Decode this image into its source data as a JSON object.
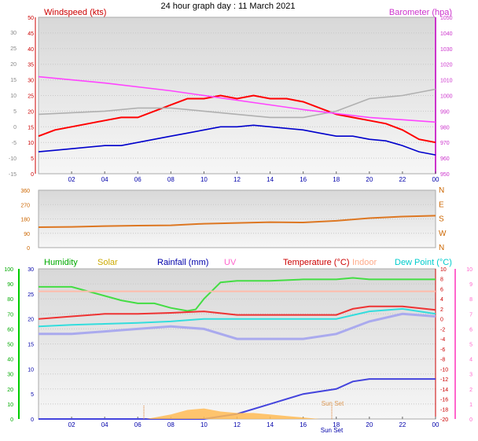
{
  "title": "24 hour graph day : 11 March 2021",
  "chart_data": [
    {
      "type": "line",
      "panel": "wind",
      "left_axis": {
        "label": "Windspeed (kts)",
        "color": "#cc0000",
        "ylim": [
          0,
          50
        ],
        "ticks": [
          "0",
          "5",
          "10",
          "15",
          "20",
          "25",
          "30",
          "35",
          "40",
          "45",
          "50"
        ]
      },
      "right_axis": {
        "label": "Barometer (hpa)",
        "color": "#cc33cc",
        "ylim": [
          950,
          1050
        ],
        "ticks": [
          "950",
          "960",
          "970",
          "980",
          "990",
          "1000",
          "1010",
          "1020",
          "1030",
          "1040",
          "1050"
        ]
      },
      "left_axis_side_ticks": [
        "-15",
        "-10",
        "-5",
        "0",
        "5",
        "10",
        "15",
        "20",
        "25",
        "30"
      ],
      "x_ticks": [
        "02",
        "04",
        "06",
        "08",
        "10",
        "12",
        "14",
        "16",
        "18",
        "20",
        "22",
        "00"
      ],
      "series": [
        {
          "role": "gust",
          "color": "#ff0000",
          "axis": "left",
          "hours": [
            0,
            1,
            2,
            3,
            4,
            5,
            6,
            7,
            8,
            9,
            10,
            11,
            12,
            13,
            14,
            15,
            16,
            17,
            18,
            19,
            20,
            21,
            22,
            23,
            24
          ],
          "values": [
            12,
            14,
            15,
            16,
            17,
            18,
            18,
            20,
            22,
            24,
            24,
            25,
            24,
            25,
            24,
            24,
            23,
            21,
            19,
            18,
            17,
            16,
            14,
            11,
            10
          ]
        },
        {
          "role": "average",
          "color": "#0000cc",
          "axis": "left",
          "hours": [
            0,
            1,
            2,
            3,
            4,
            5,
            6,
            7,
            8,
            9,
            10,
            11,
            12,
            13,
            14,
            15,
            16,
            17,
            18,
            19,
            20,
            21,
            22,
            23,
            24
          ],
          "values": [
            7,
            7.5,
            8,
            8.5,
            9,
            9,
            10,
            11,
            12,
            13,
            14,
            15,
            15,
            15.5,
            15,
            14.5,
            14,
            13,
            12,
            12,
            11,
            10.5,
            9,
            7,
            6
          ]
        },
        {
          "role": "gray",
          "color": "#b0b0b0",
          "axis": "left",
          "hours": [
            0,
            2,
            4,
            6,
            8,
            10,
            12,
            14,
            16,
            18,
            20,
            22,
            24
          ],
          "values": [
            19,
            19.5,
            20,
            21,
            21,
            20,
            19,
            18,
            18,
            20,
            24,
            25,
            27
          ]
        },
        {
          "role": "pressure",
          "color": "#ff44ff",
          "axis": "right",
          "hours": [
            0,
            4,
            8,
            12,
            16,
            20,
            24
          ],
          "values": [
            1012,
            1008,
            1003,
            997,
            991,
            986,
            983
          ]
        }
      ]
    },
    {
      "type": "line",
      "panel": "direction",
      "left_ticks": [
        "0",
        "90",
        "180",
        "270",
        "360"
      ],
      "right_labels": [
        "N",
        "W",
        "S",
        "E",
        "N"
      ],
      "ylim": [
        0,
        360
      ],
      "series": [
        {
          "role": "direction",
          "color": "#dd7722",
          "hours": [
            0,
            2,
            4,
            6,
            8,
            10,
            12,
            14,
            16,
            18,
            20,
            22,
            24
          ],
          "values": [
            128,
            130,
            135,
            138,
            140,
            150,
            155,
            160,
            158,
            168,
            185,
            195,
            200
          ]
        }
      ]
    },
    {
      "type": "line",
      "panel": "temperature",
      "legend": [
        {
          "label": "Humidity",
          "color": "#00aa00"
        },
        {
          "label": "Solar",
          "color": "#ccaa00"
        },
        {
          "label": "Rainfall (mm)",
          "color": "#0000aa"
        },
        {
          "label": "UV",
          "color": "#ff66cc"
        },
        {
          "label": "Temperature (°C)",
          "color": "#cc0000"
        },
        {
          "label": "Indoor",
          "color": "#ffaa88"
        },
        {
          "label": "Dew Point (°C)",
          "color": "#00cccc"
        }
      ],
      "humidity_axis": {
        "ylim": [
          0,
          100
        ],
        "ticks": [
          "0",
          "10",
          "20",
          "30",
          "40",
          "50",
          "60",
          "70",
          "80",
          "90",
          "100"
        ]
      },
      "rain_axis": {
        "ylim": [
          0,
          30
        ],
        "ticks": [
          "0",
          "5",
          "10",
          "15",
          "20",
          "25",
          "30"
        ]
      },
      "uv_axis": {
        "ticks": [
          "0",
          "1",
          "2",
          "3",
          "4",
          "5",
          "6",
          "7",
          "8",
          "9",
          "10"
        ]
      },
      "temp_axis": {
        "ylim": [
          -20,
          10
        ],
        "ticks": [
          "-20",
          "-18",
          "-16",
          "-14",
          "-12",
          "-10",
          "-8",
          "-6",
          "-4",
          "-2",
          "0",
          "2",
          "4",
          "6",
          "8",
          "10"
        ]
      },
      "annotations": [
        "Sun Set",
        "Sun Set"
      ],
      "series": [
        {
          "role": "humidity",
          "color": "#44dd44",
          "axis": "humidity",
          "hours": [
            0,
            2,
            3,
            4,
            5,
            6,
            7,
            8,
            9,
            9.5,
            10,
            11,
            12,
            14,
            16,
            18,
            19,
            20,
            22,
            24
          ],
          "values": [
            88,
            88,
            85,
            82,
            79,
            77,
            77,
            74,
            72,
            73,
            80,
            91,
            92,
            92,
            93,
            93,
            94,
            93,
            93,
            93
          ]
        },
        {
          "role": "temperature",
          "color": "#ee3333",
          "axis": "temp",
          "hours": [
            0,
            2,
            4,
            6,
            8,
            10,
            12,
            14,
            16,
            18,
            19,
            20,
            22,
            24
          ],
          "values": [
            0,
            0.5,
            1,
            1,
            1.2,
            1.5,
            0.8,
            0.8,
            0.8,
            0.8,
            2,
            2.5,
            2.5,
            1.8
          ]
        },
        {
          "role": "dewpoint",
          "color": "#33dddd",
          "axis": "temp",
          "hours": [
            0,
            2,
            4,
            6,
            8,
            10,
            12,
            14,
            16,
            18,
            20,
            22,
            24
          ],
          "values": [
            -1.5,
            -1.2,
            -1,
            -0.8,
            -0.5,
            0,
            0,
            0,
            0,
            0,
            1.5,
            2,
            1
          ]
        },
        {
          "role": "indoor",
          "color": "#ffbbaa",
          "axis": "temp",
          "hours": [
            0,
            24
          ],
          "values": [
            5.5,
            5.5
          ]
        },
        {
          "role": "apparent",
          "color": "#aaaaee",
          "axis": "temp",
          "hours": [
            0,
            2,
            4,
            6,
            8,
            10,
            12,
            14,
            16,
            18,
            20,
            22,
            24
          ],
          "values": [
            -3,
            -3,
            -2.5,
            -2,
            -1.5,
            -2,
            -4,
            -4,
            -4,
            -3,
            -0.5,
            1,
            0.5
          ]
        },
        {
          "role": "rainfall",
          "color": "#4444dd",
          "axis": "rain",
          "hours": [
            0,
            10,
            11,
            12,
            14,
            16,
            18,
            19,
            20,
            22,
            24
          ],
          "values": [
            0,
            0,
            0.5,
            1,
            3,
            5,
            6,
            7.5,
            8,
            8,
            8
          ]
        },
        {
          "role": "solar",
          "color": "#ffbb55",
          "axis": "humidity",
          "hours": [
            6.5,
            7,
            8,
            9,
            10,
            11,
            12,
            13,
            14,
            15,
            16,
            17
          ],
          "values": [
            0,
            1,
            3,
            6,
            7,
            5,
            4,
            4,
            3,
            2,
            1,
            0
          ]
        }
      ]
    }
  ]
}
